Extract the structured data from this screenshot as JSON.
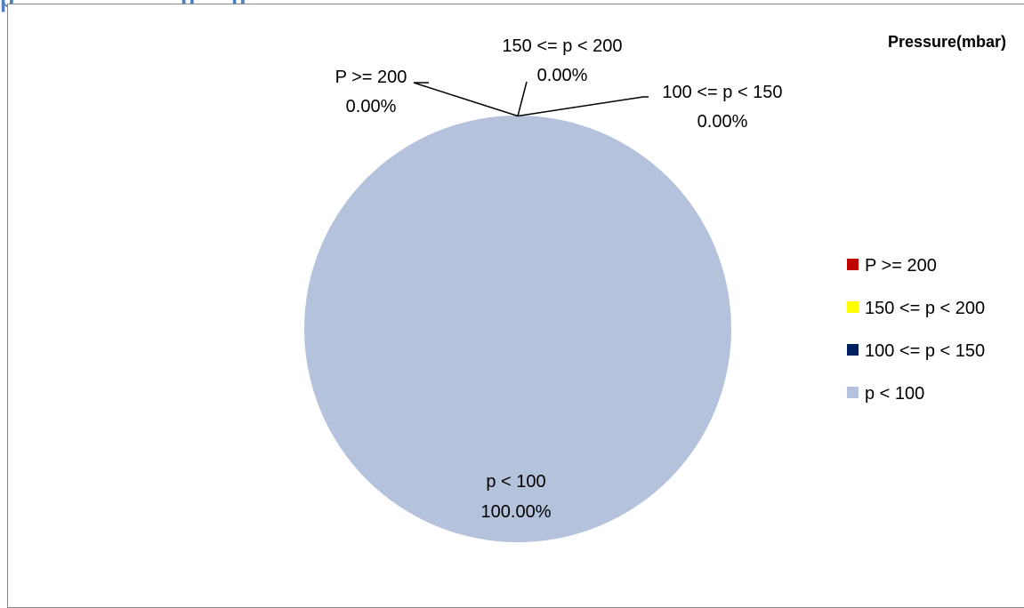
{
  "page_heading": "p….., … … … … g … p …",
  "chart_data": {
    "type": "pie",
    "title": "Pressure(mbar)",
    "categories": [
      "P >= 200",
      "150 <= p < 200",
      "100 <= p < 150",
      "p < 100"
    ],
    "values": [
      0.0,
      0.0,
      0.0,
      100.0
    ],
    "value_labels": [
      "0.00%",
      "0.00%",
      "0.00%",
      "100.00%"
    ],
    "colors": [
      "#c00000",
      "#ffff00",
      "#002060",
      "#b4c2dc"
    ],
    "legend": {
      "position": "right",
      "entries": [
        "P >= 200",
        "150 <= p < 200",
        "100 <= p < 150",
        "p < 100"
      ]
    }
  }
}
